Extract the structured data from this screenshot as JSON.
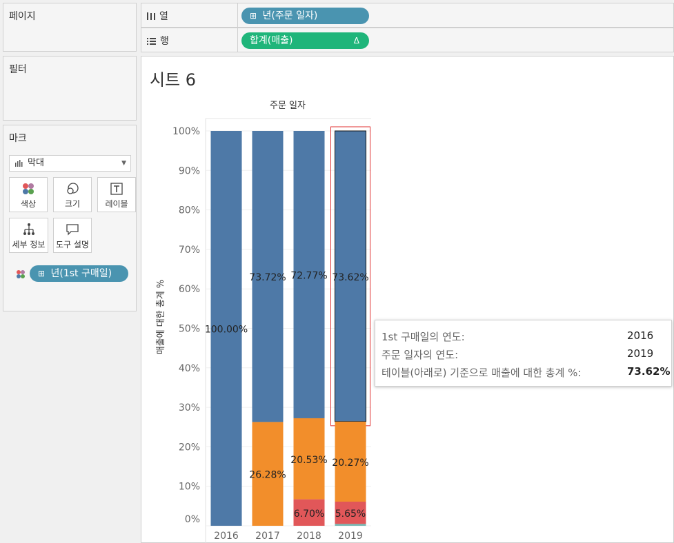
{
  "panels": {
    "pages": {
      "title": "페이지"
    },
    "filters": {
      "title": "필터"
    },
    "marks": {
      "title": "마크",
      "mark_type": "막대",
      "buttons": [
        {
          "label": "색상",
          "icon": "color-dots-icon"
        },
        {
          "label": "크기",
          "icon": "size-icon"
        },
        {
          "label": "레이블",
          "icon": "label-text-icon"
        },
        {
          "label": "세부 정보",
          "icon": "detail-hierarchy-icon"
        },
        {
          "label": "도구 설명",
          "icon": "tooltip-bubble-icon"
        }
      ],
      "color_field": "년(1st 구매일)"
    }
  },
  "shelves": {
    "columns": {
      "label": "열",
      "icon": "columns-icon",
      "pill": "년(주문 일자)"
    },
    "rows": {
      "label": "행",
      "icon": "rows-icon",
      "pill": "합계(매출)",
      "pill_flag": "Δ"
    }
  },
  "sheet": {
    "title": "시트 6"
  },
  "colors": {
    "series_2016": "#4e79a7",
    "series_2017": "#f28e2b",
    "series_2018": "#e15759",
    "series_2019": "#76b7b2",
    "pill_blue": "#4a94b0",
    "pill_green": "#1fb57a",
    "selection": "#e03030"
  },
  "chart_data": {
    "type": "bar",
    "stacked": true,
    "title": "",
    "header": "주문 일자",
    "xlabel": "",
    "ylabel": "매출에 대한 총계 %",
    "categories": [
      "2016",
      "2017",
      "2018",
      "2019"
    ],
    "ylim": [
      0,
      100
    ],
    "yticks": [
      "0%",
      "10%",
      "20%",
      "30%",
      "40%",
      "50%",
      "60%",
      "70%",
      "80%",
      "90%",
      "100%"
    ],
    "series": [
      {
        "name": "2016",
        "values": [
          100.0,
          73.72,
          72.77,
          73.62
        ],
        "labels": [
          "100.00%",
          "73.72%",
          "72.77%",
          "73.62%"
        ]
      },
      {
        "name": "2017",
        "values": [
          0,
          26.28,
          20.53,
          20.27
        ],
        "labels": [
          "",
          "26.28%",
          "20.53%",
          "20.27%"
        ]
      },
      {
        "name": "2018",
        "values": [
          0,
          0,
          6.7,
          5.65
        ],
        "labels": [
          "",
          "",
          "6.70%",
          "5.65%"
        ]
      },
      {
        "name": "2019",
        "values": [
          0,
          0,
          0,
          0.46
        ],
        "labels": [
          "",
          "",
          "",
          ""
        ]
      }
    ],
    "selected": {
      "category": "2019",
      "series": "2016"
    }
  },
  "tooltip": {
    "rows": [
      {
        "key": "1st 구매일의 연도:",
        "value": "2016"
      },
      {
        "key": "주문 일자의 연도:",
        "value": "2019"
      },
      {
        "key": "테이블(아래로) 기준으로 매출에 대한 총계 %:",
        "value": "73.62%"
      }
    ]
  }
}
